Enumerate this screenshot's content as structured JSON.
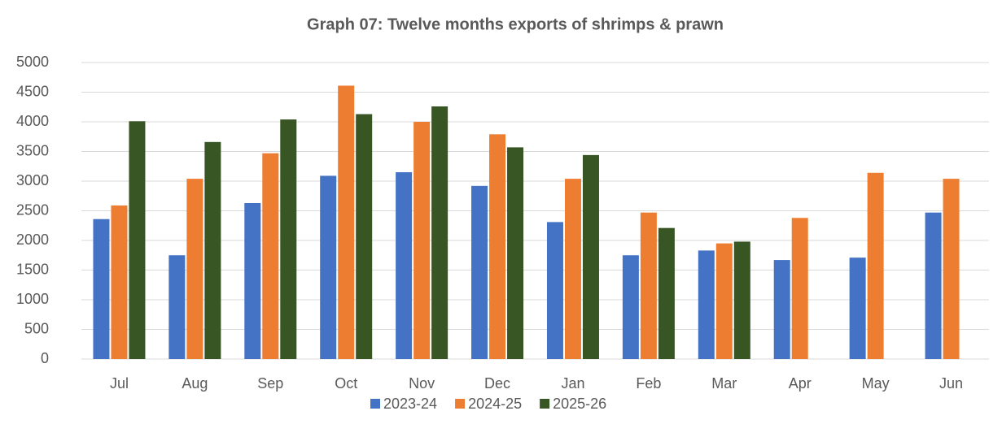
{
  "chart_data": {
    "type": "bar",
    "title": "Graph 07: Twelve months exports of shrimps & prawn",
    "categories": [
      "Jul",
      "Aug",
      "Sep",
      "Oct",
      "Nov",
      "Dec",
      "Jan",
      "Feb",
      "Mar",
      "Apr",
      "May",
      "Jun"
    ],
    "series": [
      {
        "name": "2023-24",
        "color": "#4472c4",
        "values": [
          2360,
          1750,
          2630,
          3090,
          3150,
          2920,
          2310,
          1750,
          1830,
          1670,
          1710,
          2470
        ]
      },
      {
        "name": "2024-25",
        "color": "#ed7d31",
        "values": [
          2590,
          3040,
          3470,
          4610,
          4000,
          3790,
          3040,
          2470,
          1950,
          2380,
          3140,
          3040
        ]
      },
      {
        "name": "2025-26",
        "color": "#375623",
        "values": [
          4010,
          3660,
          4040,
          4130,
          4260,
          3570,
          3440,
          2210,
          1980,
          null,
          null,
          null
        ]
      }
    ],
    "ylim": [
      0,
      5000
    ],
    "yticks": [
      0,
      500,
      1000,
      1500,
      2000,
      2500,
      3000,
      3500,
      4000,
      4500,
      5000
    ],
    "grid": true,
    "legend": "bottom"
  }
}
